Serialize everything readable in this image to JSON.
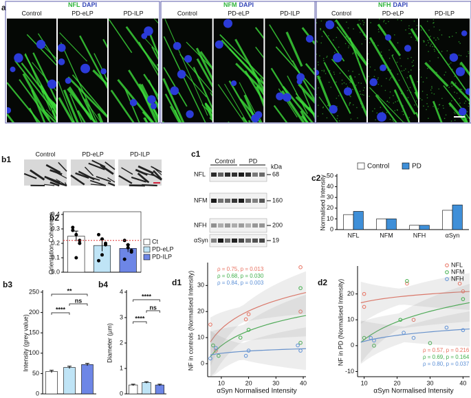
{
  "panel_a": {
    "label": "a",
    "groups": [
      {
        "marker": "NFL",
        "stain": "DAPI",
        "conditions": [
          "Control",
          "PD-eLP",
          "PD-ILP"
        ]
      },
      {
        "marker": "NFM",
        "stain": "DAPI",
        "conditions": [
          "Control",
          "PD-eLP",
          "PD-ILP"
        ]
      },
      {
        "marker": "NFH",
        "stain": "DAPI",
        "conditions": [
          "Control",
          "PD-eLP",
          "PD-ILP"
        ]
      }
    ]
  },
  "panel_b1": {
    "label": "b1",
    "conditions": [
      "Control",
      "PD-eLP",
      "PD-ILP"
    ]
  },
  "panel_c1": {
    "label": "c1",
    "groups": [
      "Control",
      "PD"
    ],
    "unit": "kDa",
    "rows": [
      {
        "protein": "NFL",
        "kda": 68
      },
      {
        "protein": "NFM",
        "kda": 160
      },
      {
        "protein": "NFH",
        "kda": 200
      },
      {
        "protein": "αSyn",
        "kda": 19
      }
    ]
  },
  "chart_data": [
    {
      "type": "bar",
      "label": "b2",
      "ylabel": "Orientation Coherence",
      "categories": [
        "Ct",
        "PD-eLP",
        "PD-ILP"
      ],
      "values": [
        0.25,
        0.185,
        0.165
      ],
      "errors": [
        0.035,
        0.04,
        0.025
      ],
      "points": [
        [
          0.29,
          0.26,
          0.22,
          0.31,
          0.1,
          0.2
        ],
        [
          0.26,
          0.23,
          0.19,
          0.08,
          0.12,
          0.2
        ],
        [
          0.22,
          0.19,
          0.15,
          0.09,
          0.17,
          0.14
        ]
      ],
      "colors": [
        "#ffffff",
        "#bfe4f6",
        "#6d86e6"
      ],
      "reference_line": 0.22,
      "legend": true,
      "ylim": [
        0,
        0.4
      ],
      "yticks": [
        {
          "value": 0,
          "label": "0.0"
        },
        0.1,
        0.2,
        0.3,
        0.4
      ]
    },
    {
      "type": "bar",
      "label": "b3",
      "ylabel": "Intensity (grey value)",
      "categories": [
        "Ct",
        "PD-eLP",
        "PD-ILP"
      ],
      "values": [
        55,
        65,
        72
      ],
      "errors": [
        3,
        3,
        3
      ],
      "colors": [
        "#ffffff",
        "#bfe4f6",
        "#6d86e6"
      ],
      "annotations": [
        "****",
        "**",
        "ns"
      ],
      "ylim": [
        0,
        250
      ],
      "yticks": [
        0,
        50,
        100,
        150,
        200,
        250
      ]
    },
    {
      "type": "bar",
      "label": "b4",
      "ylabel": "Diameter (µm)",
      "categories": [
        "Ct",
        "PD-eLP",
        "PD-ILP"
      ],
      "values": [
        0.35,
        0.45,
        0.35
      ],
      "errors": [
        0.03,
        0.03,
        0.03
      ],
      "colors": [
        "#ffffff",
        "#bfe4f6",
        "#6d86e6"
      ],
      "annotations": [
        "****",
        "****",
        "ns"
      ],
      "ylim": [
        0,
        4
      ],
      "yticks": [
        0,
        1,
        2,
        3,
        4
      ]
    },
    {
      "type": "grouped_bar",
      "label": "c2",
      "ylabel": "Normalised Intensity",
      "categories": [
        "NFL",
        "NFM",
        "NFH",
        "αSyn"
      ],
      "series": [
        {
          "name": "Control",
          "color": "#ffffff",
          "values": [
            14,
            10,
            4,
            18
          ]
        },
        {
          "name": "PD",
          "color": "#3f8fd8",
          "values": [
            17,
            10,
            4,
            23
          ]
        }
      ],
      "ylim": [
        0,
        50
      ],
      "yticks": [
        0,
        10,
        20,
        30,
        40,
        50
      ]
    },
    {
      "type": "scatter",
      "label": "d1",
      "xlabel": "αSyn Normalised Intensity",
      "ylabel": "NF in controls (Normalised Intensity)",
      "series": [
        {
          "color": "#e8705f",
          "x": [
            6,
            19,
            20,
            39,
            8,
            39
          ],
          "y": [
            15,
            17,
            19,
            37,
            5,
            20
          ]
        },
        {
          "color": "#3fae4a",
          "x": [
            7,
            17,
            20,
            39,
            9,
            39
          ],
          "y": [
            7,
            10,
            13,
            29,
            3,
            8
          ]
        },
        {
          "color": "#5b8fd6",
          "x": [
            6,
            8,
            19,
            20,
            39,
            38
          ],
          "y": [
            2,
            6,
            3,
            5,
            5,
            7
          ]
        }
      ],
      "annotations": [
        "ρ = 0.75, p = 0.013",
        "ρ = 0.68, p = 0.030",
        "ρ = 0.84, p = 0.003"
      ],
      "xlim": [
        5,
        41
      ],
      "xticks": [
        10,
        20,
        30,
        40
      ],
      "ylim": [
        -5,
        38
      ],
      "yticks": [
        0,
        10,
        20,
        30
      ]
    },
    {
      "type": "scatter",
      "label": "d2",
      "xlabel": "αSyn Normalised Intensity",
      "ylabel": "NF in PD (Normalised Intensity)",
      "series": [
        {
          "name": "NFL",
          "color": "#e8705f",
          "x": [
            10,
            10,
            23,
            25,
            39,
            40
          ],
          "y": [
            15,
            20,
            24,
            10,
            24,
            21
          ]
        },
        {
          "name": "NFM",
          "color": "#3fae4a",
          "x": [
            10,
            13,
            21,
            23,
            30,
            40
          ],
          "y": [
            3,
            0,
            10,
            25,
            1,
            18
          ]
        },
        {
          "name": "NFH",
          "color": "#5b8fd6",
          "x": [
            12,
            13,
            22,
            25,
            35,
            40
          ],
          "y": [
            3,
            2,
            5,
            3,
            7,
            6
          ]
        }
      ],
      "annotations": [
        "ρ = 0.57, p = 0.216",
        "ρ = 0.69, p = 0.164",
        "ρ = 0.80, p = 0.037"
      ],
      "xlim": [
        8,
        42
      ],
      "xticks": [
        10,
        20,
        30,
        40
      ],
      "ylim": [
        -12,
        30
      ],
      "yticks": [
        -10,
        0,
        10,
        20
      ]
    }
  ]
}
